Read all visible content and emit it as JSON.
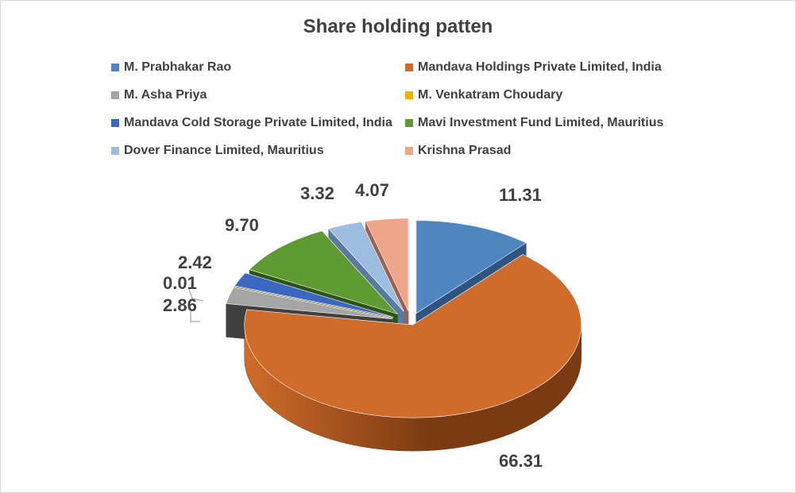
{
  "chart_data": {
    "type": "pie",
    "title": "Share holding patten",
    "three_d": true,
    "exploded": true,
    "legend_position": "top",
    "categories": [
      "M. Prabhakar Rao",
      "Mandava Holdings Private Limited, India",
      "M. Asha Priya",
      "M. Venkatram Choudary",
      "Mandava Cold Storage Private Limited, India",
      "Mavi Investment Fund Limited, Mauritius",
      "Dover Finance Limited, Mauritius",
      "Krishna Prasad"
    ],
    "values": [
      11.31,
      66.31,
      2.86,
      0.01,
      2.42,
      9.7,
      3.32,
      4.07
    ],
    "value_labels": [
      "11.31",
      "66.31",
      "2.86",
      "0.01",
      "2.42",
      "9.70",
      "3.32",
      "4.07"
    ],
    "colors": [
      "#4f86c0",
      "#d06c2b",
      "#a5a5a5",
      "#f0b400",
      "#3a68c0",
      "#5e9b33",
      "#9cbde0",
      "#eda68a"
    ],
    "side_colors": [
      "#2d5580",
      "#7a3a12",
      "#404040",
      "#8a6a00",
      "#1e3a80",
      "#2e5218",
      "#5a7aa0",
      "#a06050"
    ]
  }
}
